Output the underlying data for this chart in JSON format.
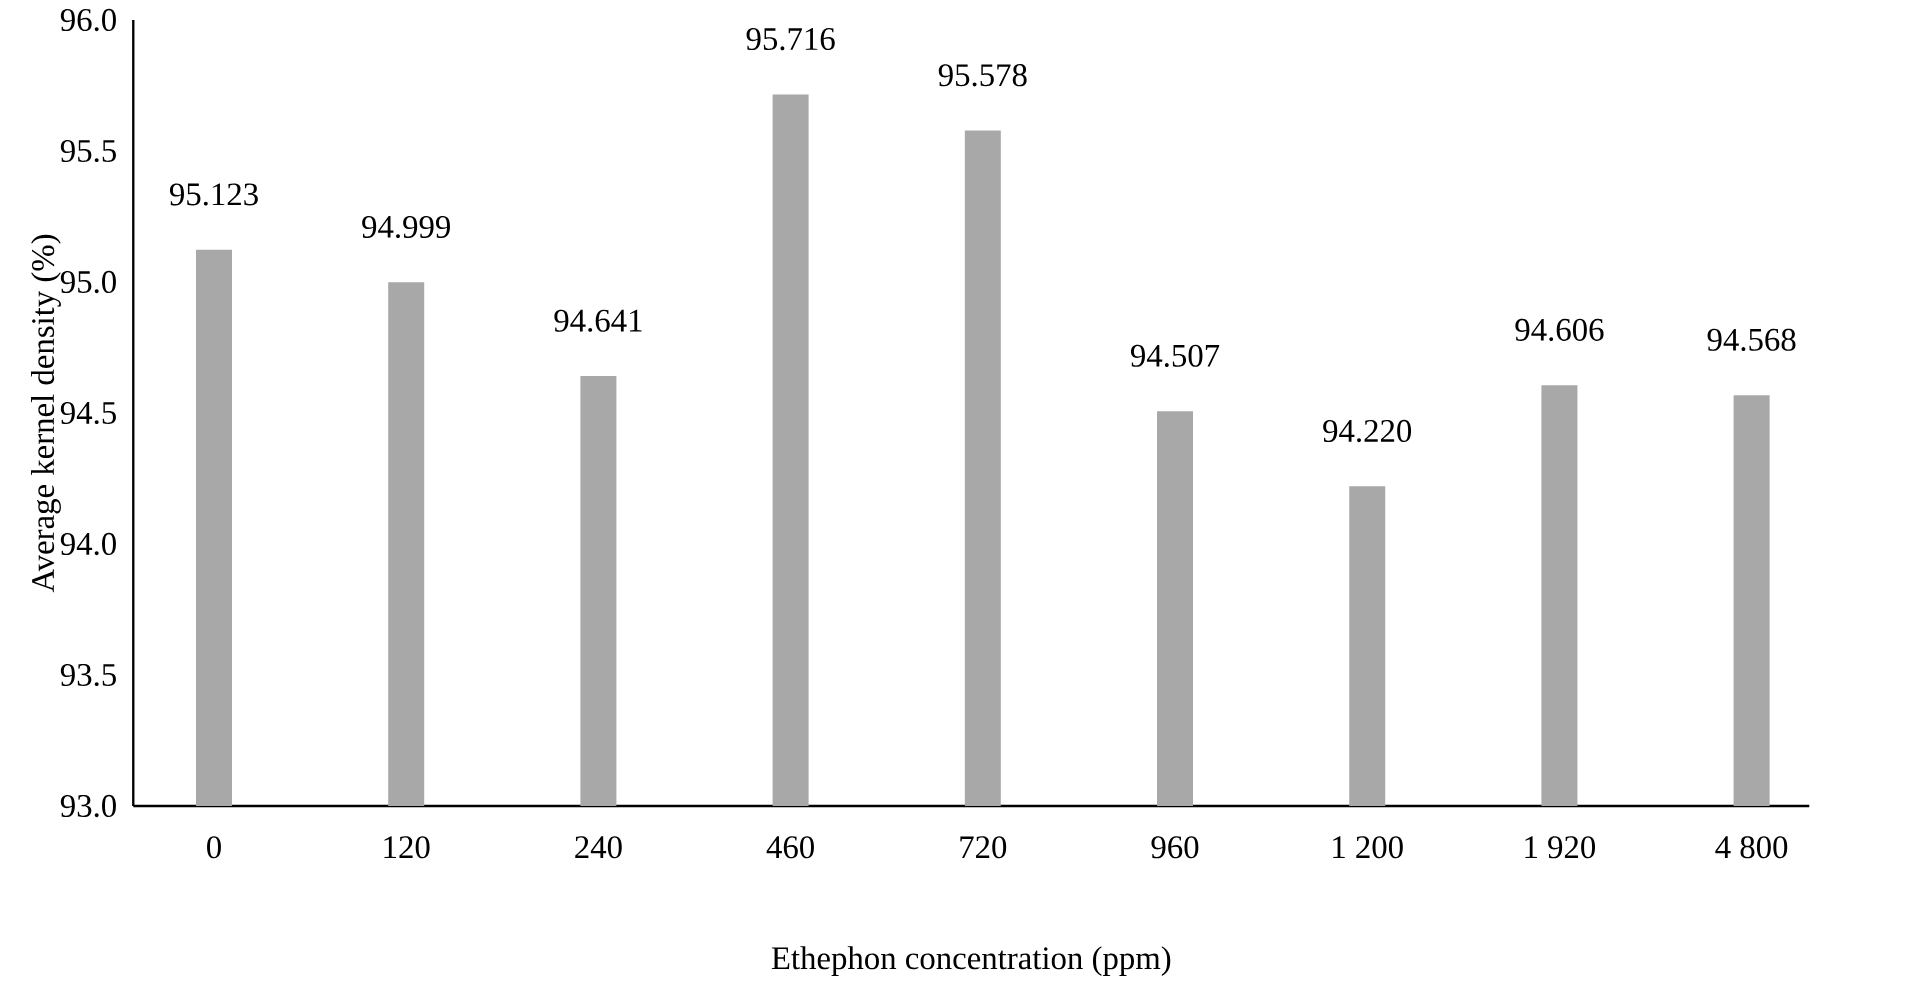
{
  "chart_data": {
    "type": "bar",
    "xlabel": "Ethephon concentration (ppm)",
    "ylabel": "Average kernel density (%)",
    "categories": [
      "0",
      "120",
      "240",
      "460",
      "720",
      "960",
      "1 200",
      "1 920",
      "4 800"
    ],
    "values": [
      95.123,
      94.999,
      94.641,
      95.716,
      95.578,
      94.507,
      94.22,
      94.606,
      94.568
    ],
    "value_labels": [
      "95.123",
      "94.999",
      "94.641",
      "95.716",
      "95.578",
      "94.507",
      "94.220",
      "94.606",
      "94.568"
    ],
    "color": "#a8a8a8",
    "ylim": [
      93.0,
      96.0
    ],
    "yticks": [
      {
        "value": 93.0,
        "label": "93.0"
      },
      {
        "value": 93.5,
        "label": "93.5"
      },
      {
        "value": 94.0,
        "label": "94.0"
      },
      {
        "value": 94.5,
        "label": "94.5"
      },
      {
        "value": 95.0,
        "label": "95.0"
      },
      {
        "value": 95.5,
        "label": "95.5"
      },
      {
        "value": 96.0,
        "label": "96.0"
      }
    ],
    "grid": false
  }
}
